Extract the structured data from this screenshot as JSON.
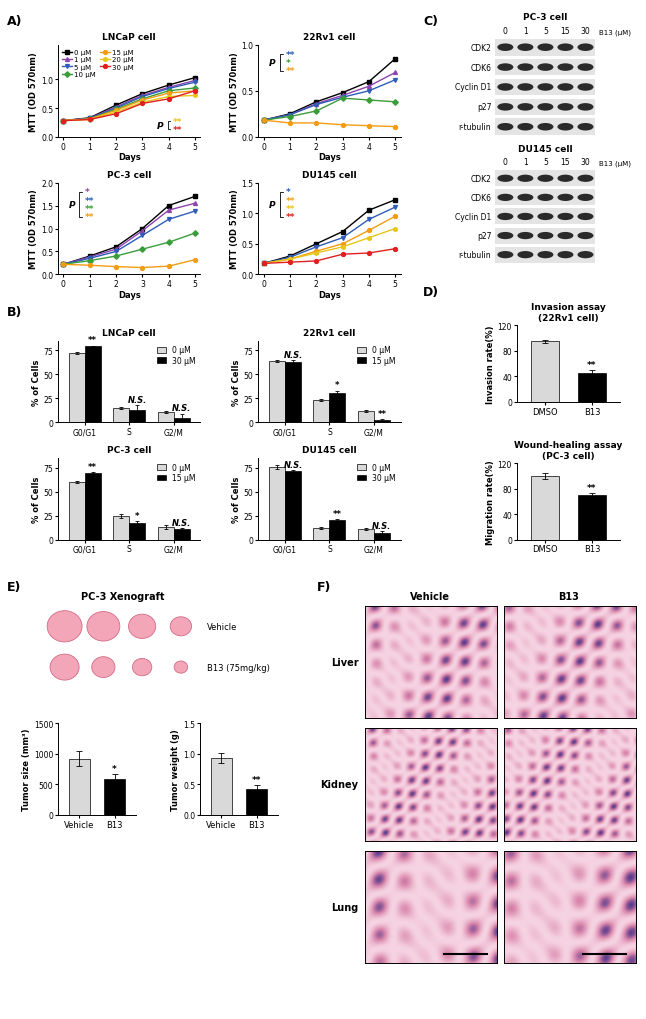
{
  "panel_labels": [
    "A)",
    "B)",
    "C)",
    "D)",
    "E)",
    "F)"
  ],
  "chart_data": [
    {
      "type": "line",
      "title": "LNCaP cell",
      "x_label": "Days",
      "y_label": "MTT (OD 570nm)",
      "x": [
        0,
        1,
        2,
        3,
        4,
        5
      ],
      "xlim": [
        -0.2,
        5.2
      ],
      "xticks": [
        0,
        1,
        2,
        3,
        4,
        5
      ],
      "ylim": [
        0.0,
        1.6
      ],
      "yticks": [
        0.0,
        0.5,
        1.0
      ],
      "legend": "upper left",
      "series": [
        {
          "name": "0 μM",
          "color": "#000000",
          "marker": "square",
          "line_style": "solid",
          "values": [
            0.28,
            0.33,
            0.55,
            0.75,
            0.9,
            1.03
          ]
        },
        {
          "name": "1 μM",
          "color": "#8e44ad",
          "marker": "triangle_up",
          "line_style": "solid",
          "values": [
            0.28,
            0.32,
            0.52,
            0.72,
            0.86,
            0.98
          ]
        },
        {
          "name": "5 μM",
          "color": "#2e5cb8",
          "marker": "triangle_down",
          "line_style": "solid",
          "values": [
            0.28,
            0.32,
            0.5,
            0.7,
            0.84,
            0.95
          ]
        },
        {
          "name": "10 μM",
          "color": "#3a9d3a",
          "marker": "diamond",
          "line_style": "solid",
          "values": [
            0.28,
            0.31,
            0.48,
            0.66,
            0.8,
            0.85
          ]
        },
        {
          "name": "15 μM",
          "color": "#f39c12",
          "marker": "circle",
          "line_style": "solid",
          "values": [
            0.28,
            0.31,
            0.46,
            0.64,
            0.76,
            0.8
          ]
        },
        {
          "name": "20 μM",
          "color": "#e6c619",
          "marker": "hexagon",
          "line_style": "solid",
          "values": [
            0.28,
            0.3,
            0.43,
            0.6,
            0.7,
            0.72
          ]
        },
        {
          "name": "30 μM",
          "color": "#e02020",
          "marker": "circle",
          "line_style": "solid",
          "values": [
            0.28,
            0.3,
            0.4,
            0.58,
            0.66,
            0.8
          ]
        }
      ],
      "annotations": {
        "label": "P",
        "marks": [
          {
            "series": "20 μM",
            "text": "**"
          },
          {
            "series": "30 μM",
            "text": "**"
          }
        ]
      }
    },
    {
      "type": "line",
      "title": "22Rv1 cell",
      "x_label": "Days",
      "y_label": "MTT (OD 570nm)",
      "x": [
        0,
        1,
        2,
        3,
        4,
        5
      ],
      "xlim": [
        -0.2,
        5.2
      ],
      "xticks": [
        0,
        1,
        2,
        3,
        4,
        5
      ],
      "ylim": [
        0.0,
        1.0
      ],
      "yticks": [
        0.0,
        0.5,
        1.0
      ],
      "series": [
        {
          "name": "0 μM",
          "color": "#000000",
          "marker": "square",
          "line_style": "solid",
          "values": [
            0.18,
            0.25,
            0.38,
            0.48,
            0.6,
            0.85
          ]
        },
        {
          "name": "1 μM",
          "color": "#8e44ad",
          "marker": "triangle_up",
          "line_style": "solid",
          "values": [
            0.18,
            0.24,
            0.36,
            0.45,
            0.55,
            0.7
          ]
        },
        {
          "name": "5 μM",
          "color": "#2e5cb8",
          "marker": "triangle_down",
          "line_style": "solid",
          "values": [
            0.18,
            0.24,
            0.35,
            0.43,
            0.5,
            0.62
          ]
        },
        {
          "name": "10 μM",
          "color": "#3a9d3a",
          "marker": "diamond",
          "line_style": "solid",
          "values": [
            0.18,
            0.22,
            0.28,
            0.42,
            0.4,
            0.38
          ]
        },
        {
          "name": "15 μM",
          "color": "#f39c12",
          "marker": "circle",
          "line_style": "solid",
          "values": [
            0.18,
            0.15,
            0.15,
            0.13,
            0.12,
            0.11
          ]
        }
      ],
      "annotations": {
        "label": "P",
        "marks": [
          {
            "series": "5 μM",
            "text": "**"
          },
          {
            "series": "10 μM",
            "text": "*"
          },
          {
            "series": "15 μM",
            "text": "**"
          }
        ]
      }
    },
    {
      "type": "line",
      "title": "PC-3 cell",
      "x_label": "Days",
      "y_label": "MTT (OD 570nm)",
      "x": [
        0,
        1,
        2,
        3,
        4,
        5
      ],
      "xlim": [
        -0.2,
        5.2
      ],
      "xticks": [
        0,
        1,
        2,
        3,
        4,
        5
      ],
      "ylim": [
        0.0,
        2.0
      ],
      "yticks": [
        0.0,
        0.5,
        1.0,
        1.5,
        2.0
      ],
      "series": [
        {
          "name": "0 μM",
          "color": "#000000",
          "marker": "square",
          "line_style": "solid",
          "values": [
            0.22,
            0.4,
            0.6,
            1.0,
            1.5,
            1.7
          ]
        },
        {
          "name": "1 μM",
          "color": "#8e44ad",
          "marker": "triangle_up",
          "line_style": "solid",
          "values": [
            0.22,
            0.38,
            0.55,
            0.95,
            1.4,
            1.55
          ]
        },
        {
          "name": "5 μM",
          "color": "#2e5cb8",
          "marker": "triangle_down",
          "line_style": "solid",
          "values": [
            0.22,
            0.35,
            0.5,
            0.85,
            1.2,
            1.38
          ]
        },
        {
          "name": "10 μM",
          "color": "#3a9d3a",
          "marker": "diamond",
          "line_style": "solid",
          "values": [
            0.22,
            0.3,
            0.4,
            0.55,
            0.7,
            0.9
          ]
        },
        {
          "name": "15 μM",
          "color": "#f39c12",
          "marker": "circle",
          "line_style": "solid",
          "values": [
            0.22,
            0.2,
            0.17,
            0.15,
            0.18,
            0.32
          ]
        }
      ],
      "annotations": {
        "label": "P",
        "marks": [
          {
            "series": "1 μM",
            "text": "*"
          },
          {
            "series": "5 μM",
            "text": "**"
          },
          {
            "series": "10 μM",
            "text": "**"
          },
          {
            "series": "15 μM",
            "text": "**"
          }
        ]
      }
    },
    {
      "type": "line",
      "title": "DU145 cell",
      "x_label": "Days",
      "y_label": "MTT (OD 570nm)",
      "x": [
        0,
        1,
        2,
        3,
        4,
        5
      ],
      "xlim": [
        -0.2,
        5.2
      ],
      "xticks": [
        0,
        1,
        2,
        3,
        4,
        5
      ],
      "ylim": [
        0.0,
        1.5
      ],
      "yticks": [
        0.0,
        0.5,
        1.0,
        1.5
      ],
      "series": [
        {
          "name": "0 μM",
          "color": "#000000",
          "marker": "square",
          "line_style": "solid",
          "values": [
            0.18,
            0.3,
            0.5,
            0.7,
            1.05,
            1.22
          ]
        },
        {
          "name": "5 μM",
          "color": "#2e5cb8",
          "marker": "triangle_down",
          "line_style": "solid",
          "values": [
            0.18,
            0.28,
            0.45,
            0.6,
            0.9,
            1.1
          ]
        },
        {
          "name": "15 μM",
          "color": "#f39c12",
          "marker": "circle",
          "line_style": "solid",
          "values": [
            0.18,
            0.25,
            0.38,
            0.5,
            0.72,
            0.95
          ]
        },
        {
          "name": "20 μM",
          "color": "#e6c619",
          "marker": "hexagon",
          "line_style": "solid",
          "values": [
            0.18,
            0.25,
            0.35,
            0.45,
            0.6,
            0.75
          ]
        },
        {
          "name": "30 μM",
          "color": "#e02020",
          "marker": "circle",
          "line_style": "solid",
          "values": [
            0.18,
            0.2,
            0.22,
            0.33,
            0.35,
            0.42
          ]
        }
      ],
      "annotations": {
        "label": "P",
        "marks": [
          {
            "series": "5 μM",
            "text": "*"
          },
          {
            "series": "15 μM",
            "text": "**"
          },
          {
            "series": "20 μM",
            "text": "**"
          },
          {
            "series": "30 μM",
            "text": "**"
          }
        ]
      }
    },
    {
      "type": "bar",
      "title": "LNCaP cell",
      "y_label": "% of Cells",
      "categories": [
        "G0/G1",
        "S",
        "G2/M"
      ],
      "ylim": [
        0,
        85
      ],
      "yticks": [
        0,
        25,
        50,
        75
      ],
      "legend": "upper right",
      "series": [
        {
          "name": "0 μM",
          "color": "#d9d9d9",
          "values": [
            72,
            15,
            11
          ],
          "errors": [
            1,
            1,
            1
          ]
        },
        {
          "name": "30 μM",
          "color": "#000000",
          "values": [
            79,
            13,
            5
          ],
          "errors": [
            1,
            5,
            4
          ],
          "annotations": [
            "**",
            "N.S.",
            "N.S."
          ]
        }
      ]
    },
    {
      "type": "bar",
      "title": "22Rv1 cell",
      "y_label": "% of Cells",
      "categories": [
        "G0/G1",
        "S",
        "G2/M"
      ],
      "ylim": [
        0,
        85
      ],
      "yticks": [
        0,
        25,
        50,
        75
      ],
      "legend": "upper right",
      "series": [
        {
          "name": "0 μM",
          "color": "#d9d9d9",
          "values": [
            64,
            23,
            12
          ],
          "errors": [
            1,
            1,
            1
          ]
        },
        {
          "name": "15 μM",
          "color": "#000000",
          "values": [
            63,
            31,
            2
          ],
          "errors": [
            2,
            2,
            1
          ],
          "annotations": [
            "N.S.",
            "*",
            "**"
          ]
        }
      ]
    },
    {
      "type": "bar",
      "title": "PC-3 cell",
      "y_label": "% of Cells",
      "categories": [
        "G0/G1",
        "S",
        "G2/M"
      ],
      "ylim": [
        0,
        85
      ],
      "yticks": [
        0,
        25,
        50,
        75
      ],
      "legend": "upper right",
      "series": [
        {
          "name": "0 μM",
          "color": "#d9d9d9",
          "values": [
            60,
            25,
            13
          ],
          "errors": [
            1,
            2,
            2
          ]
        },
        {
          "name": "15 μM",
          "color": "#000000",
          "values": [
            69,
            17,
            11
          ],
          "errors": [
            1,
            2,
            1
          ],
          "annotations": [
            "**",
            "*",
            "N.S."
          ]
        }
      ]
    },
    {
      "type": "bar",
      "title": "DU145 cell",
      "y_label": "% of Cells",
      "categories": [
        "G0/G1",
        "S",
        "G2/M"
      ],
      "ylim": [
        0,
        85
      ],
      "yticks": [
        0,
        25,
        50,
        75
      ],
      "legend": "upper right",
      "series": [
        {
          "name": "0 μM",
          "color": "#d9d9d9",
          "values": [
            76,
            12,
            11
          ],
          "errors": [
            2,
            1,
            1
          ]
        },
        {
          "name": "30 μM",
          "color": "#000000",
          "values": [
            71,
            20,
            7
          ],
          "errors": [
            1,
            1,
            2
          ],
          "annotations": [
            "N.S.",
            "**",
            "N.S."
          ]
        }
      ]
    },
    {
      "type": "bar",
      "title": "Invasion assay\n(22Rv1 cell)",
      "y_label": "Invasion rate(%)",
      "categories": [
        "DMSO",
        "B13"
      ],
      "values": [
        95,
        46
      ],
      "errors": [
        2,
        4
      ],
      "colors": [
        "#d9d9d9",
        "#000000"
      ],
      "annotations": [
        null,
        "**"
      ],
      "ylim": [
        0,
        120
      ],
      "yticks": [
        0,
        40,
        80,
        120
      ]
    },
    {
      "type": "bar",
      "title": "Wound-healing assay\n(PC-3 cell)",
      "y_label": "Migration rate(%)",
      "categories": [
        "DMSO",
        "B13"
      ],
      "values": [
        100,
        70
      ],
      "errors": [
        5,
        3
      ],
      "colors": [
        "#d9d9d9",
        "#000000"
      ],
      "annotations": [
        null,
        "**"
      ],
      "ylim": [
        0,
        120
      ],
      "yticks": [
        0,
        40,
        80,
        120
      ]
    },
    {
      "type": "bar",
      "y_label": "Tumor size (mm³)",
      "categories": [
        "Vehicle",
        "B13"
      ],
      "values": [
        920,
        590
      ],
      "errors": [
        120,
        80
      ],
      "colors": [
        "#d9d9d9",
        "#000000"
      ],
      "annotations": [
        null,
        "*"
      ],
      "ylim": [
        0,
        1500
      ],
      "yticks": [
        0,
        500,
        1000,
        1500
      ]
    },
    {
      "type": "bar",
      "y_label": "Tumor weight (g)",
      "categories": [
        "Vehicle",
        "B13"
      ],
      "values": [
        0.93,
        0.42
      ],
      "errors": [
        0.08,
        0.07
      ],
      "colors": [
        "#d9d9d9",
        "#000000"
      ],
      "annotations": [
        null,
        "**"
      ],
      "ylim": [
        0.0,
        1.5
      ],
      "yticks": [
        0.0,
        0.5,
        1.0,
        1.5
      ]
    }
  ],
  "blots": [
    {
      "title": "PC-3 cell",
      "treatment": "B13 (μM)",
      "lanes": [
        "0",
        "1",
        "5",
        "15",
        "30"
      ],
      "bands": [
        "CDK2",
        "CDK6",
        "Cyclin D1",
        "p27",
        "r-tubulin"
      ]
    },
    {
      "title": "DU145 cell",
      "treatment": "B13 (μM)",
      "lanes": [
        "0",
        "1",
        "5",
        "15",
        "30"
      ],
      "bands": [
        "CDK2",
        "CDK6",
        "Cyclin D1",
        "p27",
        "r-tubulin"
      ]
    }
  ],
  "xenograft": {
    "title": "PC-3 Xenograft",
    "rows": [
      "Vehicle",
      "B13 (75mg/kg)"
    ]
  },
  "histology": {
    "columns": [
      "Vehicle",
      "B13"
    ],
    "rows": [
      "Liver",
      "Kidney",
      "Lung"
    ]
  }
}
